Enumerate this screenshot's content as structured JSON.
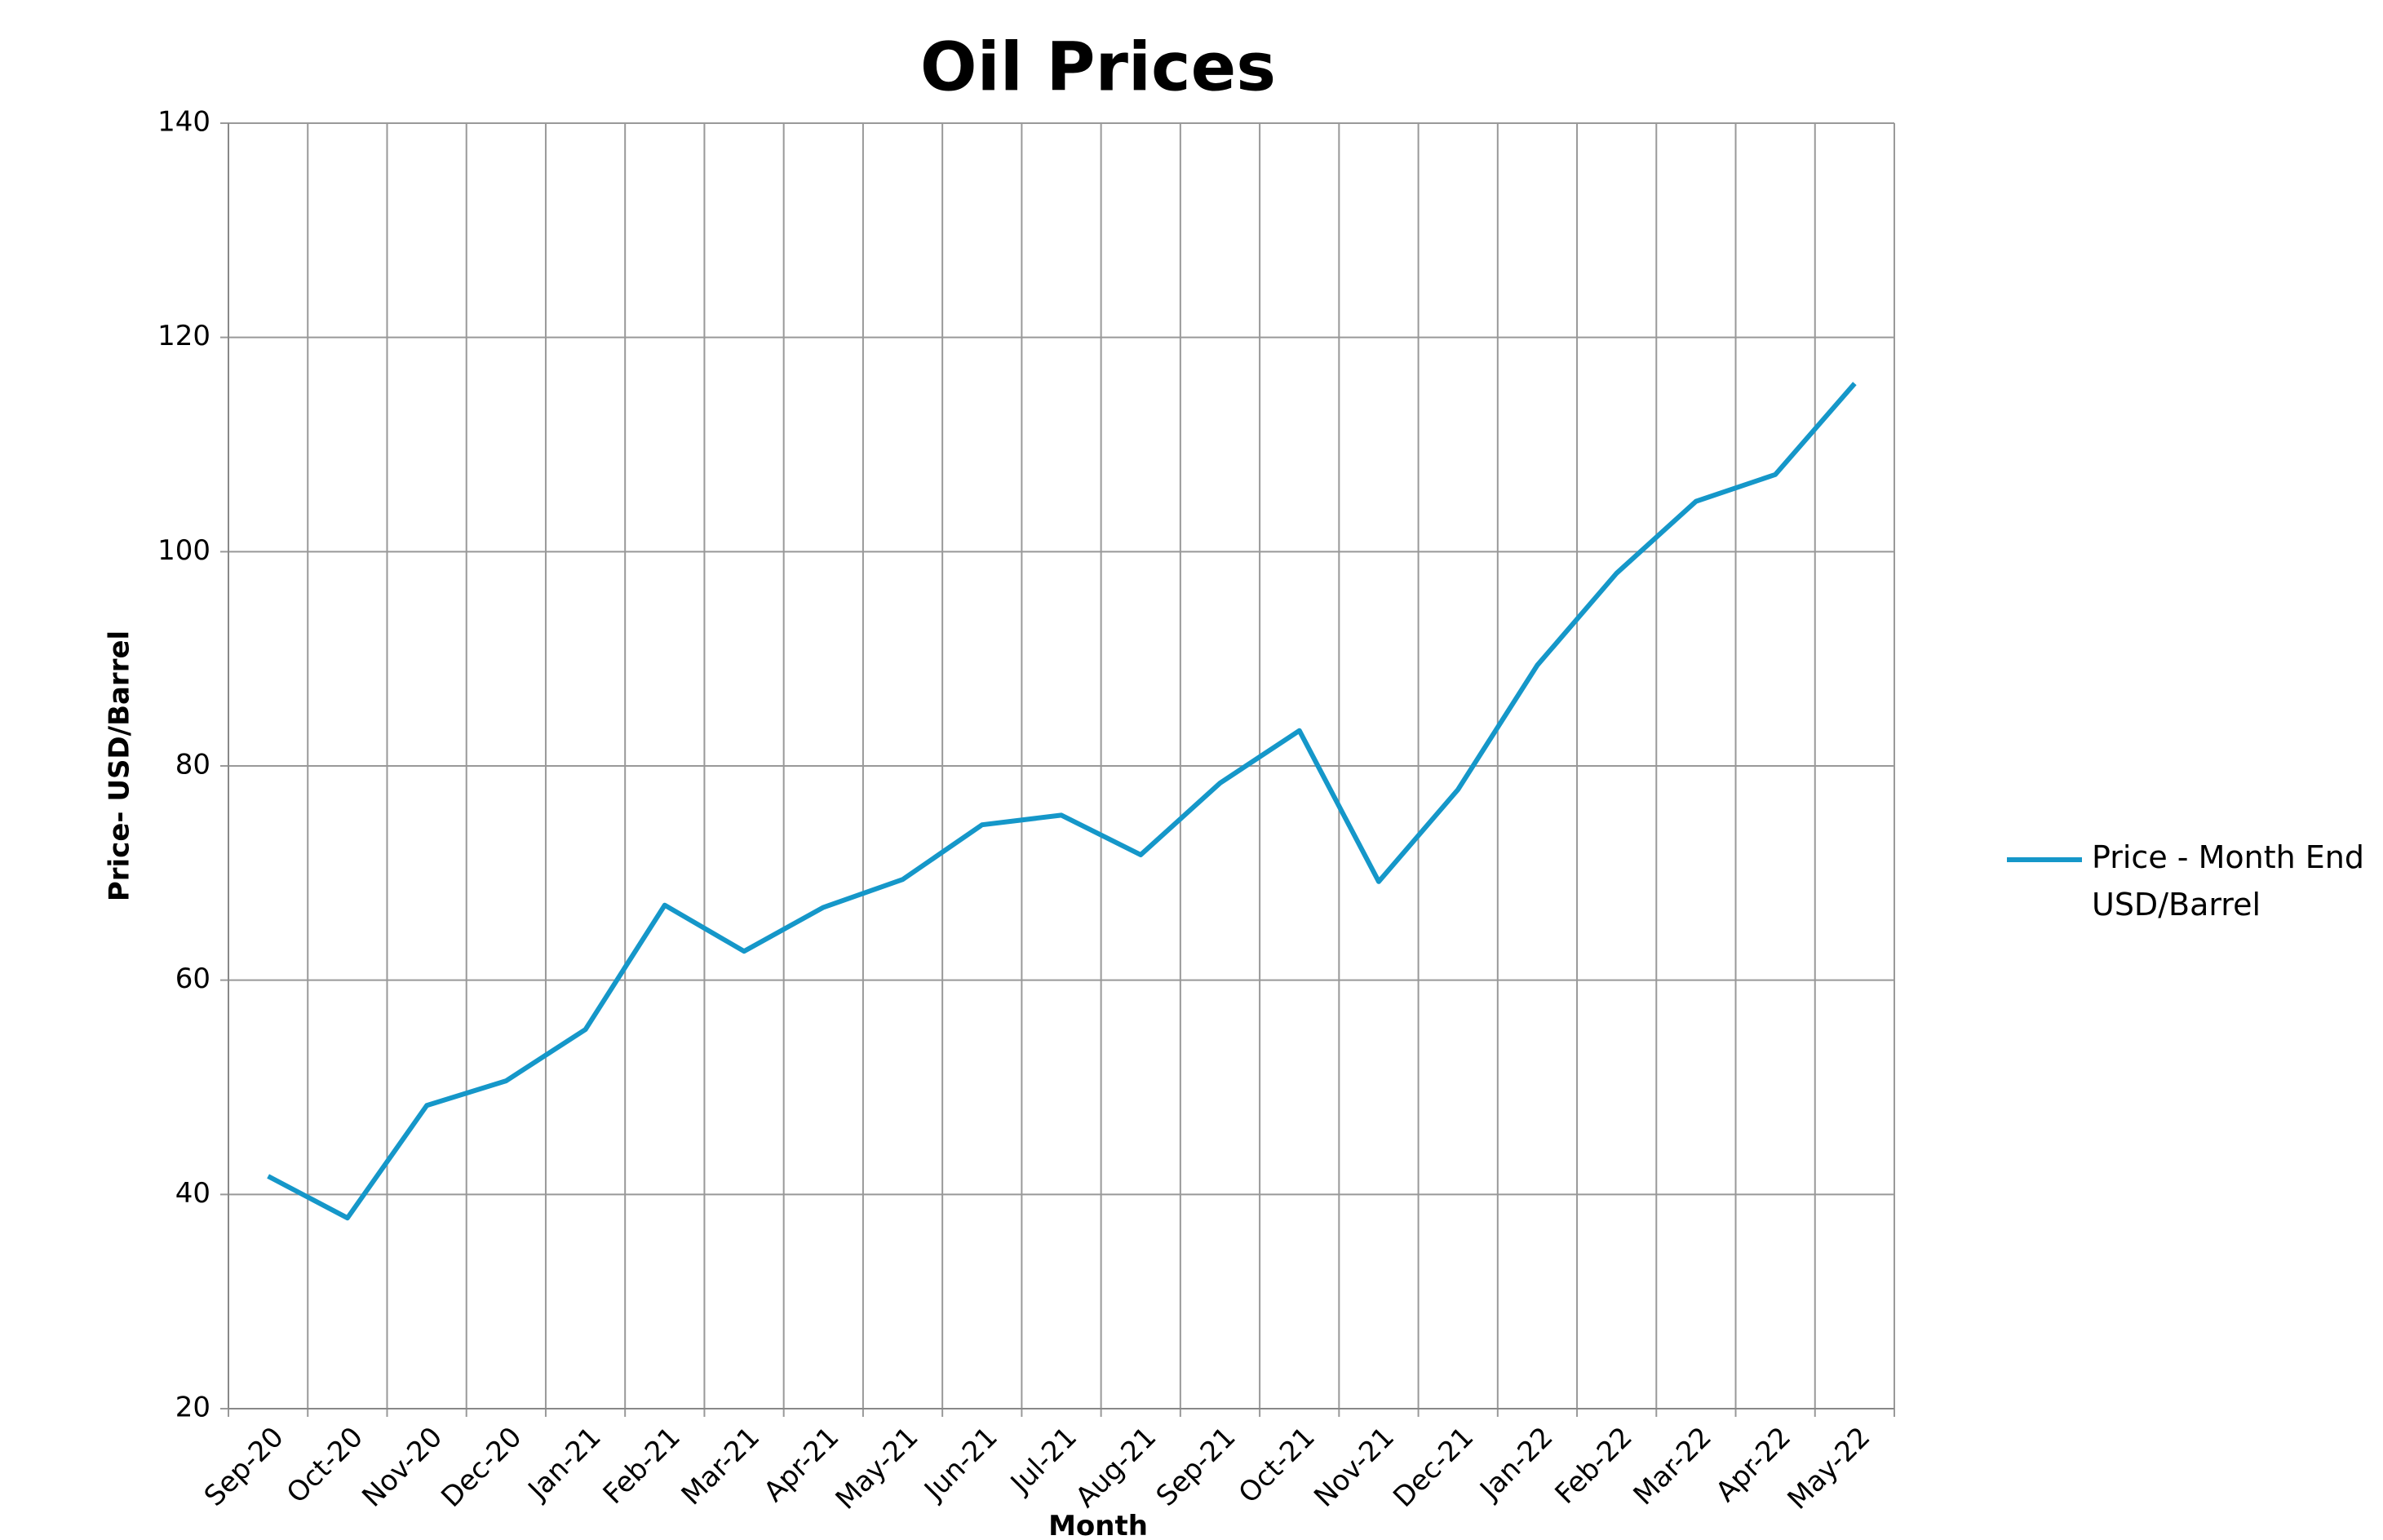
{
  "chart_data": {
    "type": "line",
    "title": "Oil Prices",
    "x_label": "Month",
    "y_label": "Price- USD/Barrel",
    "categories": [
      "Sep-20",
      "Oct-20",
      "Nov-20",
      "Dec-20",
      "Jan-21",
      "Feb-21",
      "Mar-21",
      "Apr-21",
      "May-21",
      "Jun-21",
      "Jul-21",
      "Aug-21",
      "Sep-21",
      "Oct-21",
      "Nov-21",
      "Dec-21",
      "Jan-22",
      "Feb-22",
      "Mar-22",
      "Apr-22",
      "May-22"
    ],
    "series": [
      {
        "name": "Price - Month End USD/Barrel",
        "color": "#1597c9",
        "values": [
          41.7,
          37.8,
          48.3,
          50.6,
          55.4,
          67.0,
          62.7,
          66.8,
          69.4,
          74.5,
          75.4,
          71.7,
          78.4,
          83.3,
          69.2,
          77.8,
          89.4,
          98.0,
          104.7,
          107.2,
          115.7
        ]
      }
    ],
    "ylim": [
      20,
      140
    ],
    "yticks": [
      20,
      40,
      60,
      80,
      100,
      120,
      140
    ],
    "grid": true,
    "legend": "right"
  }
}
